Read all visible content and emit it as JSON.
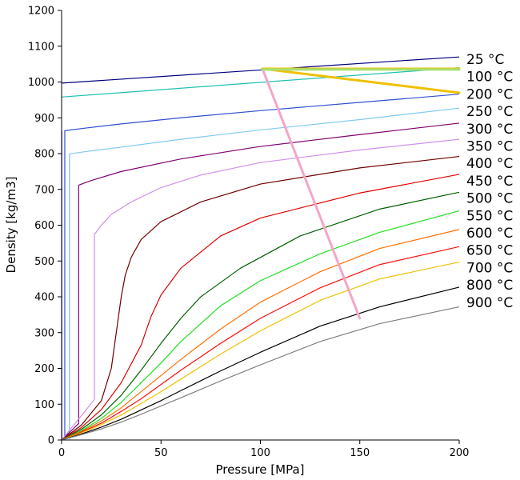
{
  "chart_data": {
    "type": "line",
    "title": "",
    "xlabel": "Pressure [MPa]",
    "ylabel": "Density [kg/m3]",
    "xlim": [
      0,
      200
    ],
    "ylim": [
      0,
      1200
    ],
    "x_ticks": [
      0,
      50,
      100,
      150,
      200
    ],
    "y_ticks": [
      0,
      100,
      200,
      300,
      400,
      500,
      600,
      700,
      800,
      900,
      1000,
      1100,
      1200
    ],
    "grid": false,
    "legend": "right-side labels",
    "series": [
      {
        "name": "25 °C",
        "color": "#000080",
        "points": [
          [
            0,
            997
          ],
          [
            200,
            1070
          ]
        ]
      },
      {
        "name": "100 °C",
        "color": "#20c0b0",
        "points": [
          [
            0,
            958
          ],
          [
            200,
            1040
          ]
        ]
      },
      {
        "name": "200 °C",
        "color": "#3050d0",
        "points": [
          [
            0.1,
            0
          ],
          [
            0.1,
            1
          ],
          [
            1.6,
            1
          ],
          [
            1.6,
            864
          ],
          [
            10,
            870
          ],
          [
            30,
            883
          ],
          [
            60,
            900
          ],
          [
            100,
            920
          ],
          [
            150,
            943
          ],
          [
            200,
            966
          ]
        ]
      },
      {
        "name": "250 °C",
        "color": "#80c8f0",
        "points": [
          [
            0.1,
            0
          ],
          [
            3.97,
            20
          ],
          [
            3.97,
            799
          ],
          [
            10,
            804
          ],
          [
            30,
            818
          ],
          [
            60,
            840
          ],
          [
            100,
            866
          ],
          [
            150,
            895
          ],
          [
            200,
            927
          ]
        ]
      },
      {
        "name": "300 °C",
        "color": "#800070",
        "points": [
          [
            0,
            0
          ],
          [
            8.58,
            46
          ],
          [
            8.58,
            712
          ],
          [
            15,
            725
          ],
          [
            30,
            750
          ],
          [
            60,
            785
          ],
          [
            100,
            820
          ],
          [
            150,
            853
          ],
          [
            200,
            885
          ]
        ]
      },
      {
        "name": "350 °C",
        "color": "#d090e8",
        "points": [
          [
            0,
            0
          ],
          [
            16.5,
            113
          ],
          [
            16.5,
            574
          ],
          [
            20,
            600
          ],
          [
            25,
            630
          ],
          [
            35,
            665
          ],
          [
            50,
            705
          ],
          [
            70,
            740
          ],
          [
            100,
            775
          ],
          [
            150,
            810
          ],
          [
            200,
            840
          ]
        ]
      },
      {
        "name": "400 °C",
        "color": "#700000",
        "points": [
          [
            0,
            0
          ],
          [
            10,
            42
          ],
          [
            20,
            110
          ],
          [
            25,
            200
          ],
          [
            28,
            320
          ],
          [
            30,
            400
          ],
          [
            32,
            460
          ],
          [
            35,
            510
          ],
          [
            40,
            560
          ],
          [
            50,
            610
          ],
          [
            70,
            665
          ],
          [
            100,
            715
          ],
          [
            150,
            760
          ],
          [
            200,
            792
          ]
        ]
      },
      {
        "name": "450 °C",
        "color": "#e00000",
        "points": [
          [
            0,
            0
          ],
          [
            10,
            35
          ],
          [
            20,
            85
          ],
          [
            30,
            160
          ],
          [
            40,
            265
          ],
          [
            45,
            345
          ],
          [
            50,
            405
          ],
          [
            60,
            480
          ],
          [
            80,
            570
          ],
          [
            100,
            620
          ],
          [
            150,
            690
          ],
          [
            200,
            742
          ]
        ]
      },
      {
        "name": "500 °C",
        "color": "#006000",
        "points": [
          [
            0,
            0
          ],
          [
            10,
            30
          ],
          [
            20,
            70
          ],
          [
            30,
            125
          ],
          [
            40,
            195
          ],
          [
            50,
            270
          ],
          [
            60,
            340
          ],
          [
            70,
            400
          ],
          [
            90,
            480
          ],
          [
            120,
            570
          ],
          [
            160,
            645
          ],
          [
            200,
            692
          ]
        ]
      },
      {
        "name": "550 °C",
        "color": "#20e020",
        "points": [
          [
            0,
            0
          ],
          [
            10,
            26
          ],
          [
            20,
            60
          ],
          [
            30,
            105
          ],
          [
            40,
            160
          ],
          [
            50,
            215
          ],
          [
            60,
            275
          ],
          [
            80,
            375
          ],
          [
            100,
            445
          ],
          [
            130,
            520
          ],
          [
            160,
            580
          ],
          [
            200,
            640
          ]
        ]
      },
      {
        "name": "600 °C",
        "color": "#ff7000",
        "points": [
          [
            0,
            0
          ],
          [
            10,
            24
          ],
          [
            20,
            53
          ],
          [
            30,
            90
          ],
          [
            40,
            135
          ],
          [
            50,
            180
          ],
          [
            60,
            225
          ],
          [
            80,
            310
          ],
          [
            100,
            385
          ],
          [
            130,
            470
          ],
          [
            160,
            535
          ],
          [
            200,
            588
          ]
        ]
      },
      {
        "name": "650 °C",
        "color": "#ff1010",
        "points": [
          [
            0,
            0
          ],
          [
            10,
            22
          ],
          [
            20,
            47
          ],
          [
            30,
            80
          ],
          [
            40,
            115
          ],
          [
            50,
            155
          ],
          [
            60,
            195
          ],
          [
            80,
            270
          ],
          [
            100,
            340
          ],
          [
            130,
            425
          ],
          [
            160,
            490
          ],
          [
            200,
            540
          ]
        ]
      },
      {
        "name": "700 °C",
        "color": "#f0c000",
        "points": [
          [
            0,
            0
          ],
          [
            10,
            20
          ],
          [
            20,
            43
          ],
          [
            30,
            70
          ],
          [
            40,
            102
          ],
          [
            50,
            135
          ],
          [
            60,
            170
          ],
          [
            80,
            240
          ],
          [
            100,
            305
          ],
          [
            130,
            390
          ],
          [
            160,
            450
          ],
          [
            200,
            497
          ]
        ]
      },
      {
        "name": "800 °C",
        "color": "#000000",
        "points": [
          [
            0,
            0
          ],
          [
            10,
            17
          ],
          [
            20,
            36
          ],
          [
            30,
            58
          ],
          [
            40,
            84
          ],
          [
            50,
            110
          ],
          [
            60,
            138
          ],
          [
            80,
            193
          ],
          [
            100,
            245
          ],
          [
            130,
            318
          ],
          [
            160,
            372
          ],
          [
            200,
            427
          ]
        ]
      },
      {
        "name": "900 °C",
        "color": "#808080",
        "points": [
          [
            0,
            0
          ],
          [
            10,
            15
          ],
          [
            20,
            31
          ],
          [
            30,
            50
          ],
          [
            40,
            72
          ],
          [
            50,
            95
          ],
          [
            60,
            118
          ],
          [
            80,
            165
          ],
          [
            100,
            210
          ],
          [
            130,
            275
          ],
          [
            160,
            325
          ],
          [
            200,
            372
          ]
        ]
      }
    ],
    "overlay_lines": [
      {
        "color": "#f4a6c8",
        "points": [
          [
            101,
            1037
          ],
          [
            150,
            340
          ]
        ]
      },
      {
        "color": "#f0c000",
        "points": [
          [
            101,
            1037
          ],
          [
            200,
            970
          ]
        ]
      },
      {
        "color": "#f0c000",
        "points": [
          [
            101,
            1037
          ],
          [
            200,
            1037
          ]
        ]
      },
      {
        "color": "#a8e070",
        "points": [
          [
            101,
            1035
          ],
          [
            200,
            1035
          ]
        ]
      }
    ],
    "isobar_lines": [
      {
        "color": "#3050d0",
        "points": [
          [
            0.1,
            0
          ],
          [
            0.1,
            864
          ]
        ]
      },
      {
        "color": "#80c8f0",
        "points": [
          [
            3.97,
            0
          ],
          [
            3.97,
            799
          ]
        ]
      }
    ]
  }
}
